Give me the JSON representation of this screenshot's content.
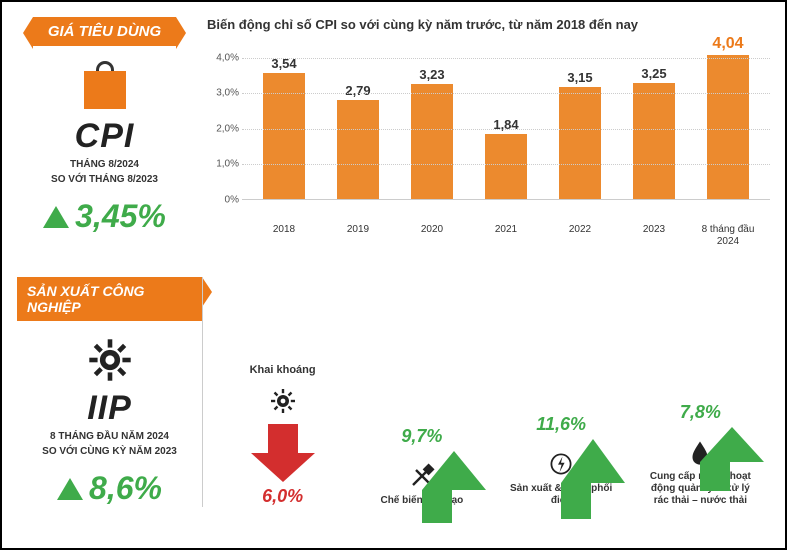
{
  "colors": {
    "orange": "#ec7a1a",
    "bar": "#ec8a2e",
    "green": "#3fab4a",
    "red": "#d32e2e",
    "text": "#333333",
    "grid": "#cccccc"
  },
  "cpi": {
    "badge": "GIÁ TIÊU DÙNG",
    "label": "CPI",
    "sub1": "THÁNG 8/2024",
    "sub2": "SO VỚI THÁNG 8/2023",
    "value": "3,45%"
  },
  "chart": {
    "title": "Biến động chỉ số CPI so với cùng kỳ năm trước, từ năm 2018 đến nay",
    "ymax": 4.5,
    "yticks": [
      "0%",
      "1,0%",
      "2,0%",
      "3,0%",
      "4,0%"
    ],
    "ytick_vals": [
      0,
      1,
      2,
      3,
      4
    ],
    "categories": [
      "2018",
      "2019",
      "2020",
      "2021",
      "2022",
      "2023",
      "8 tháng đầu 2024"
    ],
    "values": [
      3.54,
      2.79,
      3.23,
      1.84,
      3.15,
      3.25,
      4.04
    ],
    "labels": [
      "3,54",
      "2,79",
      "3,23",
      "1,84",
      "3,15",
      "3,25",
      "4,04"
    ],
    "highlight_index": 6,
    "bar_color": "#ec8a2e",
    "label_color": "#333333",
    "highlight_color": "#ec7a1a"
  },
  "iip": {
    "badge": "SẢN XUẤT CÔNG NGHIỆP",
    "label": "IIP",
    "sub1": "8 THÁNG ĐẦU NĂM 2024",
    "sub2": "SO VỚI CÙNG KỲ NĂM 2023",
    "value": "8,6%"
  },
  "sectors": [
    {
      "key": "mining",
      "label": "Khai khoáng",
      "value": "6,0%",
      "pct": 6.0,
      "dir": "down",
      "icon": "gear",
      "sub": ""
    },
    {
      "key": "manuf",
      "label": "Chế biến, chế tạo",
      "value": "9,7%",
      "pct": 9.7,
      "dir": "up",
      "icon": "tools"
    },
    {
      "key": "elec",
      "label": "Sản xuất & phân phối điện",
      "value": "11,6%",
      "pct": 11.6,
      "dir": "up",
      "icon": "power"
    },
    {
      "key": "water",
      "label": "Cung cấp nước, hoạt động quản lý & xử lý rác thải – nước thải",
      "value": "7,8%",
      "pct": 7.8,
      "dir": "up",
      "icon": "drop"
    }
  ],
  "arrow_style": {
    "max_pct": 11.6,
    "max_height": 80,
    "min_height": 35
  }
}
